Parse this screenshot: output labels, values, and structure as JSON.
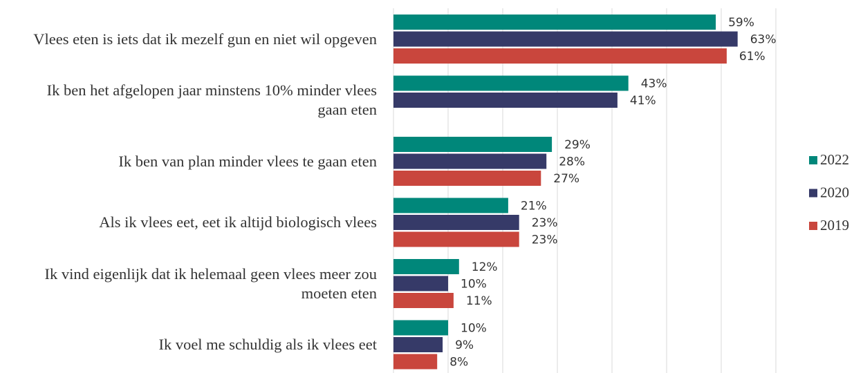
{
  "chart_data": {
    "type": "bar",
    "orientation": "horizontal",
    "categories": [
      "Vlees eten is iets dat ik mezelf gun en niet wil opgeven",
      "Ik ben het afgelopen jaar minstens 10% minder vlees gaan eten",
      "Ik ben van plan minder vlees te gaan eten",
      "Als ik vlees eet, eet ik altijd biologisch vlees",
      "Ik vind eigenlijk dat ik helemaal geen vlees meer zou moeten eten",
      "Ik voel me schuldig als ik vlees eet"
    ],
    "series": [
      {
        "name": "2022",
        "color": "#00877a",
        "values": [
          59,
          43,
          29,
          21,
          12,
          10
        ],
        "value_labels": [
          "59%",
          "43%",
          "29%",
          "21%",
          "12%",
          "10%"
        ]
      },
      {
        "name": "2020",
        "color": "#363a68",
        "values": [
          63,
          41,
          28,
          23,
          10,
          9
        ],
        "value_labels": [
          "63%",
          "41%",
          "28%",
          "23%",
          "10%",
          "9%"
        ]
      },
      {
        "name": "2019",
        "color": "#c9463d",
        "values": [
          61,
          null,
          27,
          23,
          11,
          8
        ],
        "value_labels": [
          "61%",
          null,
          "27%",
          "23%",
          "11%",
          "8%"
        ]
      }
    ],
    "xlim": [
      0,
      70
    ],
    "xticks": [
      0,
      10,
      20,
      30,
      40,
      50,
      60,
      70
    ],
    "grid": true,
    "legend": "right"
  }
}
